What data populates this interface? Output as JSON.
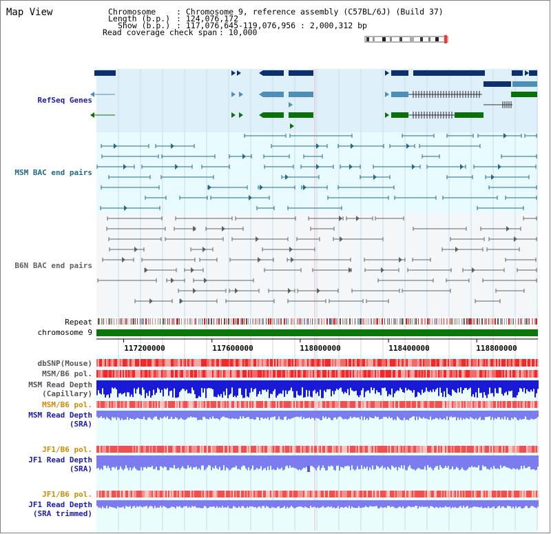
{
  "view_title": "Map View",
  "header": {
    "chromosome_key": "Chromosome",
    "chromosome_val": ": Chromosome 9, reference assembly (C57BL/6J) (Build 37)",
    "length_key": "Length (b.p.)",
    "length_val": ": 124,076,172",
    "show_key": "Show (b.p.)",
    "show_val": ": 117,076,645-119,076,956 : 2,000,312 bp",
    "coverage_key": "Read coverage check span",
    "coverage_val": ": 10,000"
  },
  "tracks": {
    "refseq": "RefSeq Genes",
    "msm_bac": "MSM BAC end pairs",
    "b6n_bac": "B6N BAC end pairs",
    "repeat": "Repeat",
    "chromosome": "chromosome 9",
    "dbsnp": "dbSNP(Mouse)",
    "msm_b6_pol_1": "MSM/B6 pol.",
    "msm_read_depth_cap_1": "MSM Read Depth",
    "msm_read_depth_cap_2": "(Capillary)",
    "msm_b6_pol_2": "MSM/B6 pol.",
    "msm_read_depth_sra_1": "MSM Read Depth",
    "msm_read_depth_sra_2": "(SRA)",
    "jf1_b6_pol_1": "JF1/B6 pol.",
    "jf1_read_depth_sra_1": "JF1 Read Depth",
    "jf1_read_depth_sra_2": "(SRA)",
    "jf1_b6_pol_2": "JF1/B6 pol.",
    "jf1_read_depth_trim_1": "JF1 Read Depth",
    "jf1_read_depth_trim_2": "(SRA trimmed)"
  },
  "axis": {
    "ticks": [
      "117200000",
      "117600000",
      "118000000",
      "118400000",
      "118800000"
    ],
    "range_bp": [
      117076645,
      119076956
    ],
    "tick_values": [
      117200000,
      117600000,
      118000000,
      118400000,
      118800000
    ]
  },
  "colors": {
    "refseq_bg": "#dff0fb",
    "bac_bg": "#e8fafd",
    "refseq_dark": "#0d2f6b",
    "refseq_mid": "#4d8fb8",
    "refseq_green": "#087208",
    "msm_bac": "#206a86",
    "b6n_bac": "#606060",
    "chromosome_bar": "#087808",
    "label_blue": "#1a1ab0",
    "label_orange": "#d08a00",
    "depth_blue": "#1a1ad6",
    "depth_light": "#7c7cf0",
    "pol_red": "#ee3a3a"
  }
}
